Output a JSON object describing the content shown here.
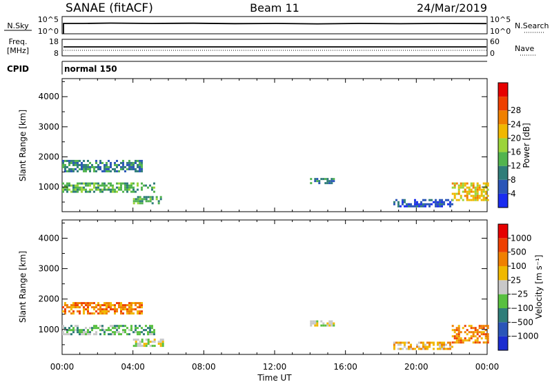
{
  "header": {
    "station": "SANAE (fitACF)",
    "beam": "Beam 11",
    "date": "24/Mar/2019"
  },
  "strip_panels": {
    "sky": {
      "left_label": "N.Sky",
      "right_label": "N.Search",
      "left_ticks": [
        "10^5",
        "10^0"
      ],
      "right_ticks": [
        "10^5",
        "10^0"
      ]
    },
    "freq": {
      "left_label_1": "Freq.",
      "left_label_2": "[MHz]",
      "right_label": "Nave",
      "left_ticks": [
        "18",
        "8"
      ],
      "right_ticks": [
        "60",
        "0"
      ]
    },
    "cpid": {
      "left_label": "CPID",
      "mode_text": "normal 150"
    }
  },
  "colors": {
    "frame": "#000000",
    "background": "#ffffff"
  },
  "chart_data": [
    {
      "type": "heatmap",
      "title": "",
      "xlabel": "",
      "ylabel": "Slant Range [km]",
      "xlim_hours": [
        0,
        24
      ],
      "ylim_km": [
        180,
        4600
      ],
      "yticks": [
        "1000",
        "2000",
        "3000",
        "4000"
      ],
      "colorbar": {
        "label": "Power [dB]",
        "ticks": [
          "4",
          "8",
          "12",
          "16",
          "20",
          "24",
          "28"
        ],
        "colors": [
          "#1a2cf0",
          "#2a55b8",
          "#2f7d79",
          "#52b44e",
          "#9bd43a",
          "#f0b800",
          "#f08000",
          "#ee4000",
          "#e60000"
        ]
      },
      "echo_regions": [
        {
          "t": [
            0.0,
            4.5
          ],
          "r": [
            1550,
            1900
          ],
          "level": 2
        },
        {
          "t": [
            0.0,
            5.2
          ],
          "r": [
            830,
            1150
          ],
          "level": 3
        },
        {
          "t": [
            4.0,
            5.7
          ],
          "r": [
            450,
            700
          ],
          "level": 3
        },
        {
          "t": [
            14.0,
            15.3
          ],
          "r": [
            1100,
            1300
          ],
          "level": 2
        },
        {
          "t": [
            18.7,
            22.0
          ],
          "r": [
            380,
            600
          ],
          "level": 1
        },
        {
          "t": [
            22.0,
            24.0
          ],
          "r": [
            550,
            1150
          ],
          "level": 5
        }
      ]
    },
    {
      "type": "heatmap",
      "title": "",
      "xlabel": "Time UT",
      "ylabel": "Slant Range [km]",
      "xlim_hours": [
        0,
        24
      ],
      "ylim_km": [
        180,
        4600
      ],
      "xticks": [
        "00:00",
        "04:00",
        "08:00",
        "12:00",
        "16:00",
        "20:00",
        "00:00"
      ],
      "yticks": [
        "1000",
        "2000",
        "3000",
        "4000"
      ],
      "colorbar": {
        "label": "Velocity [m s⁻¹]",
        "ticks": [
          "1000",
          "500",
          "100",
          "25",
          "−25",
          "−100",
          "−500",
          "−1000"
        ],
        "colors": [
          "#1a2cd0",
          "#2a55b8",
          "#2f7d79",
          "#58c040",
          "#c8c8c8",
          "#f0b800",
          "#f08000",
          "#ee4000",
          "#e60000"
        ]
      },
      "echo_regions": [
        {
          "t": [
            0.0,
            4.5
          ],
          "r": [
            1550,
            1900
          ],
          "level": 6
        },
        {
          "t": [
            0.0,
            5.2
          ],
          "r": [
            830,
            1150
          ],
          "level": 3
        },
        {
          "t": [
            4.0,
            5.7
          ],
          "r": [
            450,
            700
          ],
          "level": 4
        },
        {
          "t": [
            14.0,
            15.3
          ],
          "r": [
            1100,
            1300
          ],
          "level": 4
        },
        {
          "t": [
            18.7,
            22.0
          ],
          "r": [
            380,
            600
          ],
          "level": 5
        },
        {
          "t": [
            22.0,
            24.0
          ],
          "r": [
            550,
            1150
          ],
          "level": 6
        }
      ]
    }
  ]
}
